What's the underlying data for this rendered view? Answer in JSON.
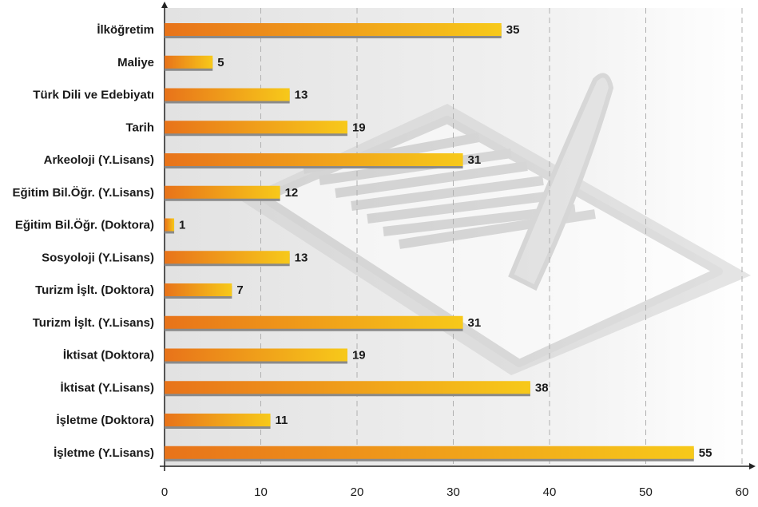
{
  "chart_data": {
    "type": "bar",
    "orientation": "horizontal",
    "categories": [
      "İlköğretim",
      "Maliye",
      "Türk Dili ve Edebiyatı",
      "Tarih",
      "Arkeoloji (Y.Lisans)",
      "Eğitim Bil.Öğr. (Y.Lisans)",
      "Eğitim Bil.Öğr. (Doktora)",
      "Sosyoloji (Y.Lisans)",
      "Turizm İşlt. (Doktora)",
      "Turizm İşlt. (Y.Lisans)",
      "İktisat (Doktora)",
      "İktisat (Y.Lisans)",
      "İşletme (Doktora)",
      "İşletme (Y.Lisans)"
    ],
    "values": [
      35,
      5,
      13,
      19,
      31,
      12,
      1,
      13,
      7,
      31,
      19,
      38,
      11,
      55
    ],
    "xlim": [
      0,
      60
    ],
    "xticks": [
      "0",
      "10",
      "20",
      "30",
      "40",
      "50",
      "60"
    ],
    "grid": "vertical dashed",
    "colors": {
      "bar_start": "#e8731a",
      "bar_end": "#f7c91a",
      "bar_shadow": "#8a8a8a",
      "grid": "#b0b0b0",
      "axis": "#222222"
    },
    "background_icon": "document-with-pen-icon"
  }
}
